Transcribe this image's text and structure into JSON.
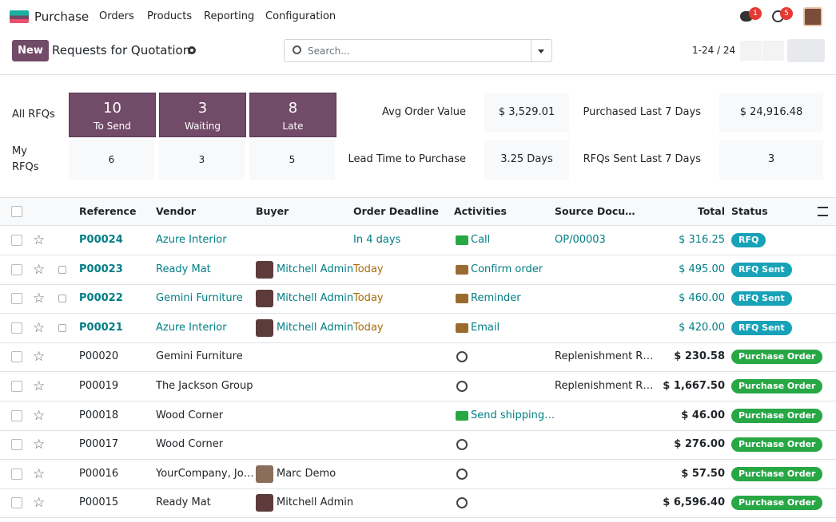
{
  "navbar": {
    "app": "Purchase",
    "menu": [
      "Orders",
      "Products",
      "Reporting",
      "Configuration"
    ],
    "messages_badge": 1,
    "activities_badge": 5
  },
  "control_panel": {
    "new_button": "New",
    "title": "Requests for Quotation",
    "search_placeholder": "Search...",
    "pager": "1-24 / 24"
  },
  "dashboard": {
    "all_rfqs_label": "All RFQs",
    "my_rfqs_label": "My RFQs",
    "all": [
      {
        "count": 10,
        "label": "To Send"
      },
      {
        "count": 3,
        "label": "Waiting"
      },
      {
        "count": 8,
        "label": "Late"
      }
    ],
    "my": [
      6,
      3,
      5
    ],
    "stats": [
      {
        "label": "Avg Order Value",
        "value": "$ 3,529.01"
      },
      {
        "label": "Purchased Last 7 Days",
        "value": "$ 24,916.48"
      },
      {
        "label": "Lead Time to Purchase",
        "value": "3.25 Days"
      },
      {
        "label": "RFQs Sent Last 7 Days",
        "value": "3"
      }
    ]
  },
  "table": {
    "columns": [
      "Reference",
      "Vendor",
      "Buyer",
      "Order Deadline",
      "Activities",
      "Source Docu…",
      "Total",
      "Status"
    ],
    "rows": [
      {
        "reference": "P00024",
        "vendor": "Azure Interior",
        "deadline": "In 4 days",
        "deadline_color": "#017e84",
        "activity": "Call",
        "activity_color": "#28a745",
        "source": "OP/00003",
        "total": "$ 316.25",
        "status": "RFQ",
        "status_color": "#17a2b8"
      },
      {
        "reference": "P00023",
        "vendor": "Ready Mat",
        "buyer": "Mitchell Admin",
        "deadline": "Today",
        "deadline_color": "#a76b0a",
        "activity": "Confirm order",
        "activity_color": "#9a6b2f",
        "total": "$ 495.00",
        "status": "RFQ Sent",
        "status_color": "#17a2b8"
      },
      {
        "reference": "P00022",
        "vendor": "Gemini Furniture",
        "buyer": "Mitchell Admin",
        "deadline": "Today",
        "deadline_color": "#a76b0a",
        "activity": "Reminder",
        "activity_color": "#9a6b2f",
        "total": "$ 460.00",
        "status": "RFQ Sent",
        "status_color": "#17a2b8"
      },
      {
        "reference": "P00021",
        "vendor": "Azure Interior",
        "buyer": "Mitchell Admin",
        "deadline": "Today",
        "deadline_color": "#a76b0a",
        "activity": "Email",
        "activity_color": "#9a6b2f",
        "total": "$ 420.00",
        "status": "RFQ Sent",
        "status_color": "#17a2b8"
      },
      {
        "reference": "P00020",
        "vendor": "Gemini Furniture",
        "source": "Replenishment R…",
        "total": "$ 230.58",
        "status": "Purchase Order",
        "status_color": "#28a745"
      },
      {
        "reference": "P00019",
        "vendor": "The Jackson Group",
        "source": "Replenishment R…",
        "total": "$ 1,667.50",
        "status": "Purchase Order",
        "status_color": "#28a745"
      },
      {
        "reference": "P00018",
        "vendor": "Wood Corner",
        "activity": "Send shipping…",
        "activity_color": "#28a745",
        "total": "$ 46.00",
        "status": "Purchase Order",
        "status_color": "#28a745"
      },
      {
        "reference": "P00017",
        "vendor": "Wood Corner",
        "total": "$ 276.00",
        "status": "Purchase Order",
        "status_color": "#28a745"
      },
      {
        "reference": "P00016",
        "vendor": "YourCompany, Jo…",
        "buyer": "Marc Demo",
        "total": "$ 57.50",
        "status": "Purchase Order",
        "status_color": "#28a745"
      },
      {
        "reference": "P00015",
        "vendor": "Ready Mat",
        "buyer": "Mitchell Admin",
        "total": "$ 6,596.40",
        "status": "Purchase Order",
        "status_color": "#28a745"
      }
    ]
  }
}
